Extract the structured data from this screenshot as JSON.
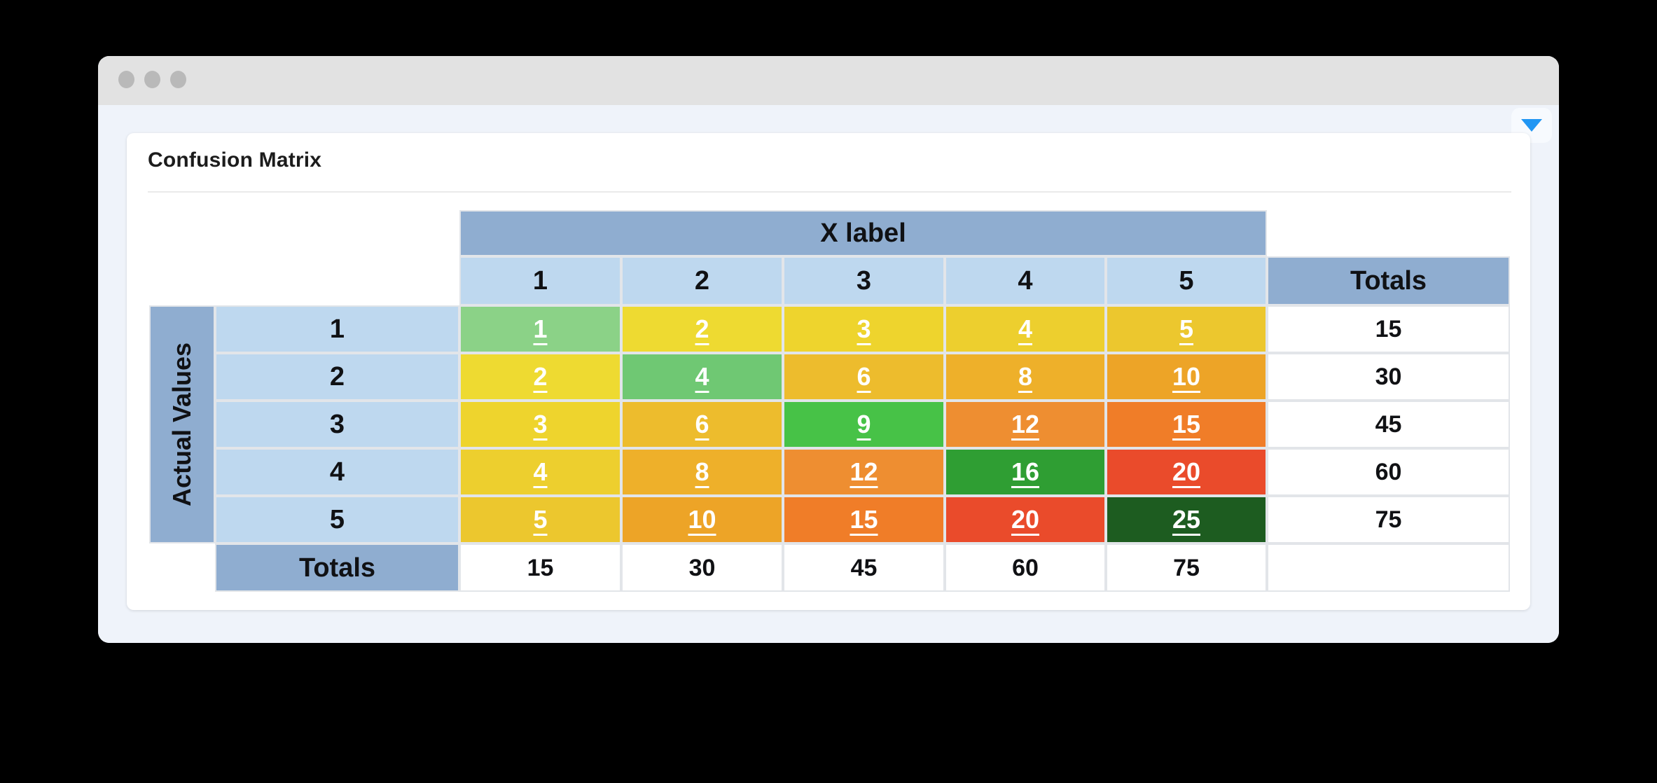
{
  "window": {
    "titlebar_color": "#e2e2e2",
    "traffic_dots_color": "#b9b9b9",
    "body_bg": "#eff3fa",
    "dropdown_caret_color": "#2196f3"
  },
  "card": {
    "title": "Confusion Matrix"
  },
  "matrix": {
    "header_bg": "#8fadd0",
    "label_bg": "#bed8ef",
    "x_axis_label": "X label",
    "y_axis_label": "Actual Values",
    "totals_header": "Totals",
    "totals_row_label": "Totals",
    "column_headers": [
      "1",
      "2",
      "3",
      "4",
      "5"
    ],
    "rows": [
      {
        "label": "1",
        "total": "15",
        "cells": [
          {
            "value": "1",
            "bg": "#8bd287"
          },
          {
            "value": "2",
            "bg": "#eeda31"
          },
          {
            "value": "3",
            "bg": "#eed42d"
          },
          {
            "value": "4",
            "bg": "#edcf2e"
          },
          {
            "value": "5",
            "bg": "#ecc72e"
          }
        ]
      },
      {
        "label": "2",
        "total": "30",
        "cells": [
          {
            "value": "2",
            "bg": "#eeda31"
          },
          {
            "value": "4",
            "bg": "#6fc873"
          },
          {
            "value": "6",
            "bg": "#edbc2d"
          },
          {
            "value": "8",
            "bg": "#eeb02a"
          },
          {
            "value": "10",
            "bg": "#eda427"
          }
        ]
      },
      {
        "label": "3",
        "total": "45",
        "cells": [
          {
            "value": "3",
            "bg": "#eed42d"
          },
          {
            "value": "6",
            "bg": "#edbc2d"
          },
          {
            "value": "9",
            "bg": "#47c247"
          },
          {
            "value": "12",
            "bg": "#ee8e31"
          },
          {
            "value": "15",
            "bg": "#f07d28"
          }
        ]
      },
      {
        "label": "4",
        "total": "60",
        "cells": [
          {
            "value": "4",
            "bg": "#edcf2e"
          },
          {
            "value": "8",
            "bg": "#eeb02a"
          },
          {
            "value": "12",
            "bg": "#ee8e31"
          },
          {
            "value": "16",
            "bg": "#2f9e33"
          },
          {
            "value": "20",
            "bg": "#ea4b2b"
          }
        ]
      },
      {
        "label": "5",
        "total": "75",
        "cells": [
          {
            "value": "5",
            "bg": "#ecc72e"
          },
          {
            "value": "10",
            "bg": "#eda427"
          },
          {
            "value": "15",
            "bg": "#f07d28"
          },
          {
            "value": "20",
            "bg": "#ea4b2b"
          },
          {
            "value": "25",
            "bg": "#1d5c20"
          }
        ]
      }
    ],
    "column_totals": [
      "15",
      "30",
      "45",
      "60",
      "75"
    ]
  },
  "chart_data": {
    "type": "heatmap",
    "title": "Confusion Matrix",
    "xlabel": "X label",
    "ylabel": "Actual Values",
    "x_categories": [
      "1",
      "2",
      "3",
      "4",
      "5"
    ],
    "y_categories": [
      "1",
      "2",
      "3",
      "4",
      "5"
    ],
    "values": [
      [
        1,
        2,
        3,
        4,
        5
      ],
      [
        2,
        4,
        6,
        8,
        10
      ],
      [
        3,
        6,
        9,
        12,
        15
      ],
      [
        4,
        8,
        12,
        16,
        20
      ],
      [
        5,
        10,
        15,
        20,
        25
      ]
    ],
    "row_totals": [
      15,
      30,
      45,
      60,
      75
    ],
    "col_totals": [
      15,
      30,
      45,
      60,
      75
    ],
    "legend_position": "none",
    "grid": false
  }
}
